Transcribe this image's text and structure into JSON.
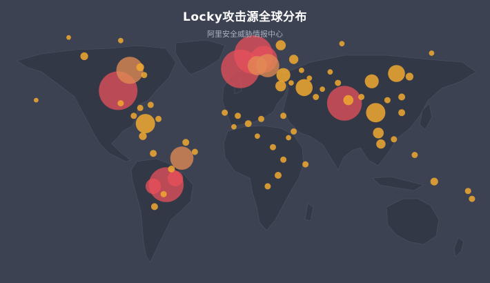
{
  "header": {
    "title": "Locky攻击源全球分布",
    "subtitle": "阿里安全威胁情报中心"
  },
  "colors": {
    "background": "#3c4252",
    "land": "#323846",
    "border": "#474e5e",
    "high": "#e8505b",
    "medium": "#e08a55",
    "low": "#f0a830"
  },
  "chart_data": {
    "type": "scatter",
    "title": "Locky攻击源全球分布",
    "subtitle": "阿里安全威胁情报中心",
    "coordinate_system": "geo (longitude, latitude)",
    "points": [
      {
        "lon": 7,
        "lat": 51,
        "level": "high",
        "size": 5
      },
      {
        "lon": -3,
        "lat": 42,
        "level": "high",
        "size": 5
      },
      {
        "lon": -97,
        "lat": 28,
        "level": "high",
        "size": 5
      },
      {
        "lon": 77,
        "lat": 20,
        "level": "high",
        "size": 4.5
      },
      {
        "lon": -60,
        "lat": -32,
        "level": "high",
        "size": 4.5
      },
      {
        "lon": 15,
        "lat": 48,
        "level": "high",
        "size": 3.5
      },
      {
        "lon": -88,
        "lat": 41,
        "level": "medium",
        "size": 3.5
      },
      {
        "lon": -48,
        "lat": -15,
        "level": "medium",
        "size": 3
      },
      {
        "lon": 18,
        "lat": 44,
        "level": "medium",
        "size": 3
      },
      {
        "lon": 10,
        "lat": 44,
        "level": "medium",
        "size": 2.5
      },
      {
        "lon": -70,
        "lat": -33,
        "level": "high",
        "size": 2
      },
      {
        "lon": -53,
        "lat": -28,
        "level": "high",
        "size": 2
      },
      {
        "lon": 101,
        "lat": 14,
        "level": "low",
        "size": 2.5
      },
      {
        "lon": -76,
        "lat": 7,
        "level": "low",
        "size": 2.5
      },
      {
        "lon": 46,
        "lat": 30,
        "level": "low",
        "size": 2.2
      },
      {
        "lon": 117,
        "lat": 39,
        "level": "low",
        "size": 2.2
      },
      {
        "lon": 98,
        "lat": 34,
        "level": "low",
        "size": 1.8
      },
      {
        "lon": 30,
        "lat": 38,
        "level": "low",
        "size": 1.8
      },
      {
        "lon": 28,
        "lat": 31,
        "level": "low",
        "size": 1.4
      },
      {
        "lon": 103,
        "lat": 1,
        "level": "low",
        "size": 1.4
      },
      {
        "lon": 28,
        "lat": 57,
        "level": "low",
        "size": 1.3
      },
      {
        "lon": 38,
        "lat": 48,
        "level": "low",
        "size": 1.2
      },
      {
        "lon": 80,
        "lat": 22,
        "level": "low",
        "size": 1.3
      },
      {
        "lon": 105,
        "lat": -6,
        "level": "low",
        "size": 1.2
      },
      {
        "lon": -123,
        "lat": 50,
        "level": "low",
        "size": 1
      },
      {
        "lon": -80,
        "lat": 43,
        "level": "low",
        "size": 1
      },
      {
        "lon": -77,
        "lat": 38,
        "level": "low",
        "size": 0.8
      },
      {
        "lon": -95,
        "lat": 20,
        "level": "low",
        "size": 0.8
      },
      {
        "lon": -85,
        "lat": 12,
        "level": "low",
        "size": 0.8
      },
      {
        "lon": -80,
        "lat": 17,
        "level": "low",
        "size": 0.8
      },
      {
        "lon": -72,
        "lat": 19,
        "level": "low",
        "size": 0.8
      },
      {
        "lon": -66,
        "lat": 10,
        "level": "low",
        "size": 0.8
      },
      {
        "lon": -78,
        "lat": -1,
        "level": "low",
        "size": 1
      },
      {
        "lon": -70,
        "lat": -12,
        "level": "low",
        "size": 0.9
      },
      {
        "lon": -56,
        "lat": -22,
        "level": "low",
        "size": 0.9
      },
      {
        "lon": -45,
        "lat": -5,
        "level": "low",
        "size": 0.9
      },
      {
        "lon": -38,
        "lat": -11,
        "level": "low",
        "size": 0.8
      },
      {
        "lon": -62,
        "lat": -38,
        "level": "low",
        "size": 0.8
      },
      {
        "lon": -69,
        "lat": -46,
        "level": "low",
        "size": 0.9
      },
      {
        "lon": -15,
        "lat": 14,
        "level": "low",
        "size": 0.8
      },
      {
        "lon": -5,
        "lat": 12,
        "level": "low",
        "size": 0.8
      },
      {
        "lon": 3,
        "lat": 7,
        "level": "low",
        "size": 0.9
      },
      {
        "lon": 13,
        "lat": 10,
        "level": "low",
        "size": 0.8
      },
      {
        "lon": 30,
        "lat": 12,
        "level": "low",
        "size": 0.8
      },
      {
        "lon": 38,
        "lat": 2,
        "level": "low",
        "size": 0.8
      },
      {
        "lon": 22,
        "lat": -8,
        "level": "low",
        "size": 0.8
      },
      {
        "lon": 30,
        "lat": -16,
        "level": "low",
        "size": 0.8
      },
      {
        "lon": 26,
        "lat": -26,
        "level": "low",
        "size": 0.9
      },
      {
        "lon": 18,
        "lat": -33,
        "level": "low",
        "size": 0.8
      },
      {
        "lon": 47,
        "lat": -19,
        "level": "low",
        "size": 0.8
      },
      {
        "lon": 55,
        "lat": 24,
        "level": "low",
        "size": 0.8
      },
      {
        "lon": 66,
        "lat": 40,
        "level": "low",
        "size": 0.7
      },
      {
        "lon": 72,
        "lat": 33,
        "level": "low",
        "size": 0.8
      },
      {
        "lon": 90,
        "lat": 24,
        "level": "low",
        "size": 0.8
      },
      {
        "lon": 121,
        "lat": 24,
        "level": "low",
        "size": 0.9
      },
      {
        "lon": 127,
        "lat": 37,
        "level": "low",
        "size": 1
      },
      {
        "lon": 121,
        "lat": 14,
        "level": "low",
        "size": 0.9
      },
      {
        "lon": 110,
        "lat": 22,
        "level": "low",
        "size": 0.8
      },
      {
        "lon": 115,
        "lat": -3,
        "level": "low",
        "size": 0.8
      },
      {
        "lon": 131,
        "lat": -13,
        "level": "low",
        "size": 0.8
      },
      {
        "lon": 146,
        "lat": -30,
        "level": "low",
        "size": 1
      },
      {
        "lon": 175,
        "lat": -41,
        "level": "low",
        "size": 0.8
      },
      {
        "lon": 172,
        "lat": -36,
        "level": "low",
        "size": 0.8
      },
      {
        "lon": 144,
        "lat": 52,
        "level": "low",
        "size": 0.7
      },
      {
        "lon": 75,
        "lat": 58,
        "level": "low",
        "size": 0.7
      },
      {
        "lon": -95,
        "lat": 60,
        "level": "low",
        "size": 0.7
      },
      {
        "lon": -135,
        "lat": 62,
        "level": "low",
        "size": 0.6
      },
      {
        "lon": -160,
        "lat": 22,
        "level": "low",
        "size": 0.6
      },
      {
        "lon": 44,
        "lat": 41,
        "level": "low",
        "size": 0.7
      },
      {
        "lon": 36,
        "lat": 33,
        "level": "low",
        "size": 0.7
      },
      {
        "lon": 60,
        "lat": 29,
        "level": "low",
        "size": 0.7
      },
      {
        "lon": 50,
        "lat": 36,
        "level": "low",
        "size": 0.7
      },
      {
        "lon": 34,
        "lat": -2,
        "level": "low",
        "size": 0.7
      },
      {
        "lon": -8,
        "lat": 5,
        "level": "low",
        "size": 0.7
      },
      {
        "lon": 10,
        "lat": -1,
        "level": "low",
        "size": 0.7
      }
    ]
  }
}
